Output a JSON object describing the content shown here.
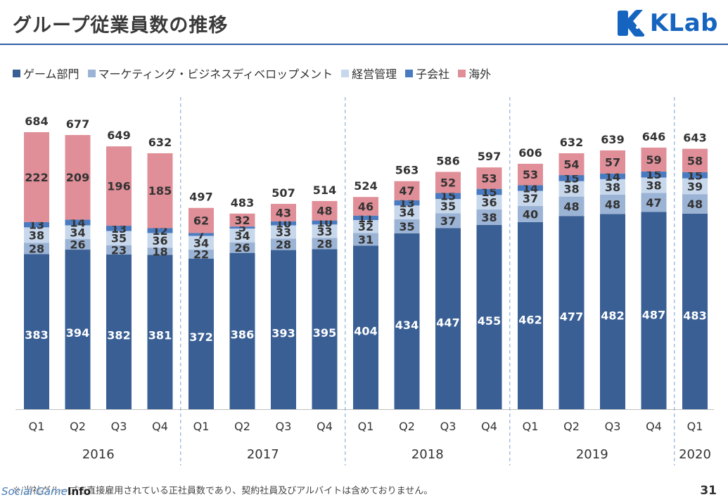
{
  "header": {
    "title": "グループ従業員数の推移",
    "logo_text": "KLab",
    "logo_color": "#1565c0"
  },
  "footer": {
    "footnote": "※ 当社グループで直接雇用されている正社員数であり、契約社員及びアルバイトは含めておりません。",
    "page_number": "31",
    "watermark_part1": "Social Game",
    "watermark_part2": "Info"
  },
  "chart_data": {
    "type": "bar",
    "stacked": true,
    "legend_placement": "top-left",
    "grid": false,
    "ylim": [
      0,
      720
    ],
    "categories": [
      "Q1",
      "Q2",
      "Q3",
      "Q4",
      "Q1",
      "Q2",
      "Q3",
      "Q4",
      "Q1",
      "Q2",
      "Q3",
      "Q4",
      "Q1",
      "Q2",
      "Q3",
      "Q4",
      "Q1"
    ],
    "years": [
      {
        "label": "2016",
        "span": 4
      },
      {
        "label": "2017",
        "span": 4
      },
      {
        "label": "2018",
        "span": 4
      },
      {
        "label": "2019",
        "span": 4
      },
      {
        "label": "2020",
        "span": 1
      }
    ],
    "totals": [
      684,
      677,
      649,
      632,
      497,
      483,
      507,
      514,
      524,
      563,
      586,
      597,
      606,
      632,
      639,
      646,
      643
    ],
    "series": [
      {
        "name": "ゲーム部門",
        "color": "#3a5f94",
        "label_color": "#ffffff",
        "values": [
          383,
          394,
          382,
          381,
          372,
          386,
          393,
          395,
          404,
          434,
          447,
          455,
          462,
          477,
          482,
          487,
          483
        ]
      },
      {
        "name": "マーケティング・ビジネスディベロップメント",
        "color": "#9bb3d4",
        "label_color": "#333333",
        "values": [
          28,
          26,
          23,
          18,
          22,
          26,
          28,
          28,
          31,
          35,
          37,
          38,
          40,
          48,
          48,
          47,
          48
        ]
      },
      {
        "name": "経営管理",
        "color": "#c8d8ec",
        "label_color": "#333333",
        "values": [
          38,
          34,
          35,
          36,
          34,
          34,
          33,
          33,
          32,
          34,
          35,
          36,
          37,
          38,
          38,
          38,
          39
        ]
      },
      {
        "name": "子会社",
        "color": "#4a7bc0",
        "label_color": "#333333",
        "values": [
          13,
          14,
          13,
          12,
          7,
          5,
          10,
          10,
          11,
          13,
          15,
          15,
          14,
          15,
          14,
          15,
          15
        ]
      },
      {
        "name": "海外",
        "color": "#e08f98",
        "label_color": "#333333",
        "values": [
          222,
          209,
          196,
          185,
          62,
          32,
          43,
          48,
          46,
          47,
          52,
          53,
          53,
          54,
          57,
          59,
          58
        ]
      }
    ]
  }
}
